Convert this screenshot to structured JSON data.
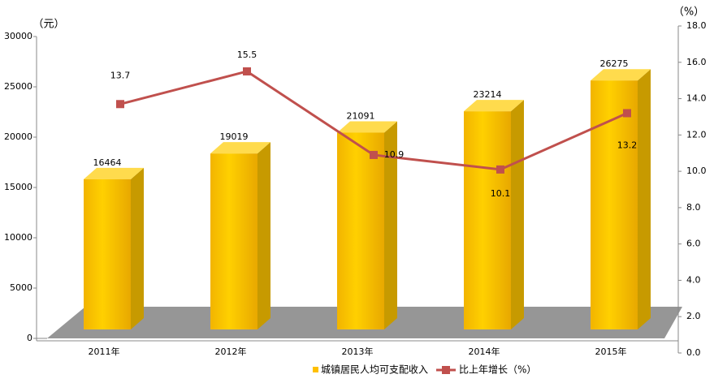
{
  "chart_data": {
    "type": "combo",
    "y_label": "（元）",
    "y2_label": "（%）",
    "categories": [
      "2011年",
      "2012年",
      "2013年",
      "2014年",
      "2015年"
    ],
    "series": [
      {
        "name": "城镇居民人均可支配收入",
        "type": "bar",
        "color": "#ffc000",
        "values": [
          16464,
          19019,
          21091,
          23214,
          26275
        ]
      },
      {
        "name": "比上年增长（%）",
        "type": "line",
        "axis": "y2",
        "color": "#c0504d",
        "values": [
          13.7,
          15.5,
          10.9,
          10.1,
          13.2
        ]
      }
    ],
    "ylim": [
      0,
      30000
    ],
    "yticks": [
      0,
      5000,
      10000,
      15000,
      20000,
      25000,
      30000
    ],
    "y2lim": [
      0,
      18
    ],
    "y2ticks": [
      {
        "value": 0,
        "label": "0.0"
      },
      {
        "value": 2,
        "label": "2.0"
      },
      {
        "value": 4,
        "label": "4.0"
      },
      {
        "value": 6,
        "label": "6.0"
      },
      {
        "value": 8,
        "label": "8.0"
      },
      {
        "value": 10,
        "label": "10.0"
      },
      {
        "value": 12,
        "label": "12.0"
      },
      {
        "value": 14,
        "label": "14.0"
      },
      {
        "value": 16,
        "label": "16.0"
      },
      {
        "value": 18,
        "label": "18.0"
      }
    ],
    "legend": "bottom"
  }
}
